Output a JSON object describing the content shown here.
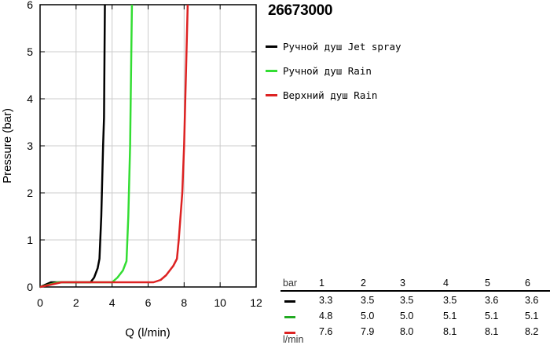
{
  "chart_data": {
    "type": "line",
    "title": "26673000",
    "xlabel": "Q (l/min)",
    "ylabel": "Pressure (bar)",
    "xlim": [
      0,
      12
    ],
    "ylim": [
      0,
      6
    ],
    "x_ticks": [
      "0",
      "2",
      "4",
      "6",
      "8",
      "10",
      "12"
    ],
    "y_ticks": [
      "0",
      "1",
      "2",
      "3",
      "4",
      "5",
      "6"
    ],
    "grid": true,
    "legend_position": "right",
    "series": [
      {
        "name": "Ручной душ Jet spray",
        "color": "#000000",
        "points": [
          [
            0,
            0
          ],
          [
            0.3,
            0.05
          ],
          [
            0.6,
            0.1
          ],
          [
            2.8,
            0.1
          ],
          [
            3.0,
            0.2
          ],
          [
            3.2,
            0.4
          ],
          [
            3.3,
            0.6
          ],
          [
            3.4,
            1.5
          ],
          [
            3.5,
            3.0
          ],
          [
            3.55,
            3.6
          ],
          [
            3.6,
            6.0
          ]
        ]
      },
      {
        "name": "Ручной душ Rain",
        "color": "#33dd33",
        "points": [
          [
            0,
            0
          ],
          [
            0.5,
            0.05
          ],
          [
            1.0,
            0.1
          ],
          [
            4.0,
            0.1
          ],
          [
            4.3,
            0.2
          ],
          [
            4.6,
            0.35
          ],
          [
            4.8,
            0.55
          ],
          [
            4.9,
            1.5
          ],
          [
            5.0,
            3.0
          ],
          [
            5.1,
            6.0
          ]
        ]
      },
      {
        "name": "Верхний душ Rain",
        "color": "#dd2222",
        "points": [
          [
            0,
            0
          ],
          [
            0.6,
            0.05
          ],
          [
            1.2,
            0.1
          ],
          [
            6.3,
            0.1
          ],
          [
            6.7,
            0.15
          ],
          [
            7.0,
            0.25
          ],
          [
            7.4,
            0.45
          ],
          [
            7.6,
            0.6
          ],
          [
            7.7,
            1.0
          ],
          [
            7.9,
            2.0
          ],
          [
            8.0,
            3.0
          ],
          [
            8.1,
            4.5
          ],
          [
            8.2,
            6.0
          ]
        ]
      }
    ]
  },
  "flow_table": {
    "header_label": "bar",
    "unit_label": "l/min",
    "pressures": [
      "1",
      "2",
      "3",
      "4",
      "5",
      "6"
    ],
    "rows": [
      {
        "color": "#000000",
        "values": [
          "3.3",
          "3.5",
          "3.5",
          "3.5",
          "3.6",
          "3.6"
        ]
      },
      {
        "color": "#22aa22",
        "values": [
          "4.8",
          "5.0",
          "5.0",
          "5.1",
          "5.1",
          "5.1"
        ]
      },
      {
        "color": "#dd2222",
        "values": [
          "7.6",
          "7.9",
          "8.0",
          "8.1",
          "8.1",
          "8.2"
        ]
      }
    ]
  }
}
